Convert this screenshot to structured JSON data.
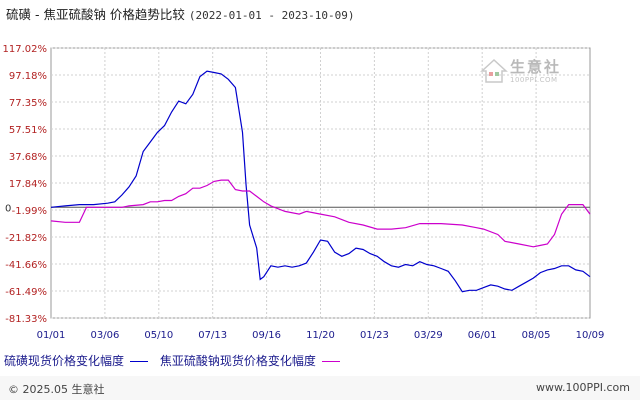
{
  "header": {
    "title": "硫磺 - 焦亚硫酸钠 价格趋势比较",
    "date_range": "(2022-01-01 - 2023-10-09)"
  },
  "watermark": {
    "text": "生意社",
    "url": "100PPI.COM"
  },
  "footer": {
    "copyright": "© 2025.05 生意社",
    "site": "www.100PPI.com"
  },
  "colors": {
    "series1": "#0000cc",
    "series2": "#cc00cc",
    "axis_label": "#b22222",
    "x_label": "#1a1a8c",
    "grid": "#d0d0d0"
  },
  "chart_data": {
    "type": "line",
    "y_ticks": [
      "117.02%",
      "97.18%",
      "77.35%",
      "57.51%",
      "37.68%",
      "17.84%",
      "-1.99%",
      "-21.82%",
      "-41.66%",
      "-61.49%",
      "-81.33%"
    ],
    "y_tick_values": [
      117.02,
      97.18,
      77.35,
      57.51,
      37.68,
      17.84,
      -1.99,
      -21.82,
      -41.66,
      -61.49,
      -81.33
    ],
    "y_zero_label": "0",
    "ylim": [
      -81.33,
      117.02
    ],
    "x_ticks": [
      "01/01",
      "03/06",
      "05/10",
      "07/13",
      "09/16",
      "11/20",
      "01/23",
      "03/29",
      "06/01",
      "08/05",
      "10/09"
    ],
    "series": [
      {
        "name": "硫磺现货价格变化幅度",
        "color": "#0000cc",
        "points": [
          [
            0,
            0
          ],
          [
            2,
            1
          ],
          [
            4,
            2
          ],
          [
            6,
            2
          ],
          [
            8,
            3
          ],
          [
            9,
            4
          ],
          [
            10,
            9
          ],
          [
            11,
            15
          ],
          [
            12,
            23
          ],
          [
            13,
            41
          ],
          [
            14,
            48
          ],
          [
            15,
            55
          ],
          [
            16,
            60
          ],
          [
            17,
            70
          ],
          [
            18,
            78
          ],
          [
            19,
            76
          ],
          [
            20,
            83
          ],
          [
            21,
            96
          ],
          [
            22,
            100
          ],
          [
            23,
            99
          ],
          [
            24,
            98
          ],
          [
            25,
            94
          ],
          [
            26,
            88
          ],
          [
            27,
            55
          ],
          [
            27.5,
            17
          ],
          [
            28,
            -13
          ],
          [
            29,
            -30
          ],
          [
            29.5,
            -53
          ],
          [
            30,
            -51
          ],
          [
            31,
            -43
          ],
          [
            32,
            -44
          ],
          [
            33,
            -43
          ],
          [
            34,
            -44
          ],
          [
            35,
            -43
          ],
          [
            36,
            -41
          ],
          [
            37,
            -33
          ],
          [
            38,
            -24
          ],
          [
            39,
            -25
          ],
          [
            40,
            -33
          ],
          [
            41,
            -36
          ],
          [
            42,
            -34
          ],
          [
            43,
            -30
          ],
          [
            44,
            -31
          ],
          [
            45,
            -34
          ],
          [
            46,
            -36
          ],
          [
            47,
            -40
          ],
          [
            48,
            -43
          ],
          [
            49,
            -44
          ],
          [
            50,
            -42
          ],
          [
            51,
            -43
          ],
          [
            52,
            -40
          ],
          [
            53,
            -42
          ],
          [
            54,
            -43
          ],
          [
            55,
            -45
          ],
          [
            56,
            -47
          ],
          [
            57,
            -54
          ],
          [
            58,
            -62
          ],
          [
            59,
            -61
          ],
          [
            60,
            -61
          ],
          [
            61,
            -59
          ],
          [
            62,
            -57
          ],
          [
            63,
            -58
          ],
          [
            64,
            -60
          ],
          [
            65,
            -61
          ],
          [
            66,
            -58
          ],
          [
            67,
            -55
          ],
          [
            68,
            -52
          ],
          [
            69,
            -48
          ],
          [
            70,
            -46
          ],
          [
            71,
            -45
          ],
          [
            72,
            -43
          ],
          [
            73,
            -43
          ],
          [
            74,
            -46
          ],
          [
            75,
            -47
          ],
          [
            76,
            -51
          ]
        ]
      },
      {
        "name": "焦亚硫酸钠现货价格变化幅度",
        "color": "#cc00cc",
        "points": [
          [
            0,
            -10
          ],
          [
            2,
            -11
          ],
          [
            4,
            -11
          ],
          [
            5,
            0
          ],
          [
            7,
            0
          ],
          [
            9,
            0
          ],
          [
            10,
            0
          ],
          [
            11,
            1
          ],
          [
            13,
            2
          ],
          [
            14,
            4
          ],
          [
            15,
            4
          ],
          [
            16,
            5
          ],
          [
            17,
            5
          ],
          [
            18,
            8
          ],
          [
            19,
            10
          ],
          [
            20,
            14
          ],
          [
            21,
            14
          ],
          [
            22,
            16
          ],
          [
            23,
            19
          ],
          [
            24,
            20
          ],
          [
            25,
            20
          ],
          [
            26,
            13
          ],
          [
            27,
            12
          ],
          [
            28,
            12
          ],
          [
            29,
            8
          ],
          [
            30,
            4
          ],
          [
            31,
            1
          ],
          [
            33,
            -3
          ],
          [
            35,
            -5
          ],
          [
            36,
            -3
          ],
          [
            38,
            -5
          ],
          [
            40,
            -7
          ],
          [
            42,
            -11
          ],
          [
            44,
            -13
          ],
          [
            46,
            -16
          ],
          [
            48,
            -16
          ],
          [
            50,
            -15
          ],
          [
            52,
            -12
          ],
          [
            55,
            -12
          ],
          [
            58,
            -13
          ],
          [
            60,
            -15
          ],
          [
            61,
            -16
          ],
          [
            63,
            -20
          ],
          [
            64,
            -25
          ],
          [
            66,
            -27
          ],
          [
            68,
            -29
          ],
          [
            69,
            -28
          ],
          [
            70,
            -27
          ],
          [
            71,
            -20
          ],
          [
            72,
            -5
          ],
          [
            73,
            2
          ],
          [
            74,
            2
          ],
          [
            75,
            2
          ],
          [
            76,
            -5
          ]
        ]
      }
    ],
    "legend_position": "bottom-left",
    "grid": true
  }
}
